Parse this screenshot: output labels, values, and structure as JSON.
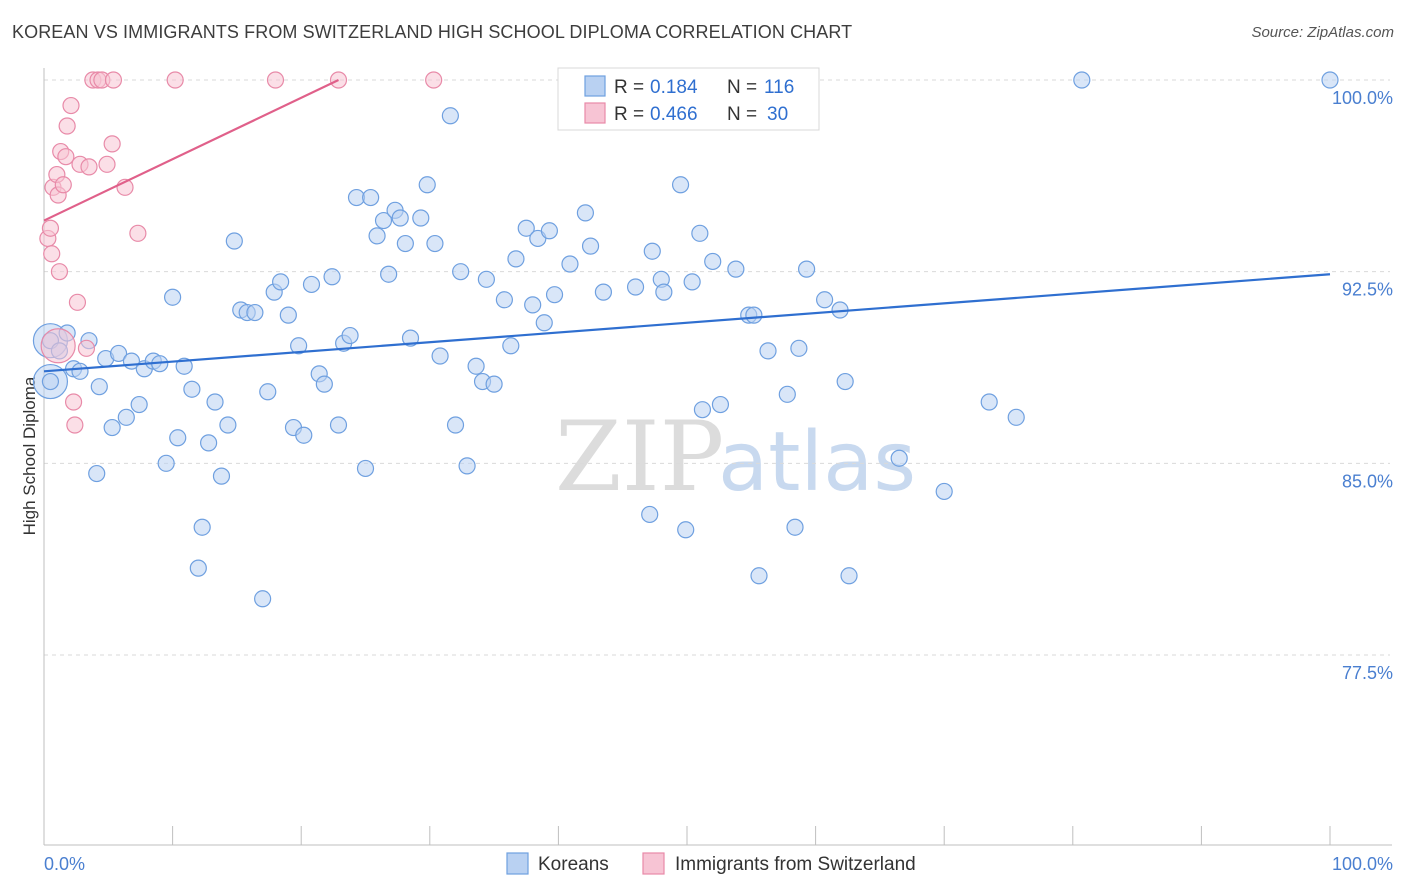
{
  "title": "KOREAN VS IMMIGRANTS FROM SWITZERLAND HIGH SCHOOL DIPLOMA CORRELATION CHART",
  "source": "Source: ZipAtlas.com",
  "watermark": {
    "zip": "ZIP",
    "atlas": "atlas"
  },
  "legend": {
    "r_label": "R =",
    "n_label": "N =",
    "rows": [
      {
        "r": "0.184",
        "n": "116"
      },
      {
        "r": "0.466",
        "n": "30"
      }
    ]
  },
  "chart_data": {
    "type": "scatter",
    "title": "KOREAN VS IMMIGRANTS FROM SWITZERLAND HIGH SCHOOL DIPLOMA CORRELATION CHART",
    "xlabel": "",
    "ylabel": "High School Diploma",
    "xlim": [
      0,
      100
    ],
    "ylim": [
      70.0,
      101.0
    ],
    "x_tick_labels": [
      "0.0%",
      "100.0%"
    ],
    "y_ticks": [
      77.5,
      85.0,
      92.5,
      100.0
    ],
    "y_tick_labels": [
      "77.5%",
      "85.0%",
      "92.5%",
      "100.0%"
    ],
    "grid": "horizontal dashed",
    "legend_position": "top-center",
    "colors": {
      "blue": "#6fa0e0",
      "blue_fill": "#b9d1f2",
      "pink": "#e88aa8",
      "pink_fill": "#f7c4d4",
      "blue_line": "#2f6fd0",
      "pink_line": "#e0608a"
    },
    "series": [
      {
        "name": "Koreans",
        "color": "#6fa0e0",
        "trend": {
          "x": [
            0,
            100
          ],
          "y": [
            88.6,
            92.4
          ]
        },
        "points": [
          [
            0.5,
            89.8
          ],
          [
            0.5,
            88.2
          ],
          [
            1.2,
            89.4
          ],
          [
            1.8,
            90.1
          ],
          [
            2.3,
            88.7
          ],
          [
            2.8,
            88.6
          ],
          [
            3.5,
            89.8
          ],
          [
            4.1,
            84.6
          ],
          [
            4.3,
            88.0
          ],
          [
            4.8,
            89.1
          ],
          [
            5.3,
            86.4
          ],
          [
            5.8,
            89.3
          ],
          [
            6.4,
            86.8
          ],
          [
            6.8,
            89.0
          ],
          [
            7.4,
            87.3
          ],
          [
            7.8,
            88.7
          ],
          [
            8.5,
            89.0
          ],
          [
            9.0,
            88.9
          ],
          [
            9.5,
            85.0
          ],
          [
            10.0,
            91.5
          ],
          [
            10.4,
            86.0
          ],
          [
            10.9,
            88.8
          ],
          [
            11.5,
            87.9
          ],
          [
            12.0,
            80.9
          ],
          [
            12.3,
            82.5
          ],
          [
            12.8,
            85.8
          ],
          [
            13.3,
            87.4
          ],
          [
            13.8,
            84.5
          ],
          [
            14.3,
            86.5
          ],
          [
            14.8,
            93.7
          ],
          [
            15.3,
            91.0
          ],
          [
            15.8,
            90.9
          ],
          [
            16.4,
            90.9
          ],
          [
            17.0,
            79.7
          ],
          [
            17.4,
            87.8
          ],
          [
            17.9,
            91.7
          ],
          [
            18.4,
            92.1
          ],
          [
            19.0,
            90.8
          ],
          [
            19.4,
            86.4
          ],
          [
            19.8,
            89.6
          ],
          [
            20.2,
            86.1
          ],
          [
            20.8,
            92.0
          ],
          [
            21.4,
            88.5
          ],
          [
            21.8,
            88.1
          ],
          [
            22.4,
            92.3
          ],
          [
            22.9,
            86.5
          ],
          [
            23.3,
            89.7
          ],
          [
            23.8,
            90.0
          ],
          [
            24.3,
            95.4
          ],
          [
            25.0,
            84.8
          ],
          [
            25.4,
            95.4
          ],
          [
            25.9,
            93.9
          ],
          [
            26.4,
            94.5
          ],
          [
            26.8,
            92.4
          ],
          [
            27.3,
            94.9
          ],
          [
            27.7,
            94.6
          ],
          [
            28.1,
            93.6
          ],
          [
            28.5,
            89.9
          ],
          [
            29.3,
            94.6
          ],
          [
            29.8,
            95.9
          ],
          [
            30.4,
            93.6
          ],
          [
            30.8,
            89.2
          ],
          [
            31.6,
            98.6
          ],
          [
            32.0,
            86.5
          ],
          [
            32.4,
            92.5
          ],
          [
            32.9,
            84.9
          ],
          [
            33.6,
            88.8
          ],
          [
            34.1,
            88.2
          ],
          [
            34.4,
            92.2
          ],
          [
            35.0,
            88.1
          ],
          [
            35.8,
            91.4
          ],
          [
            36.3,
            89.6
          ],
          [
            36.7,
            93.0
          ],
          [
            37.5,
            94.2
          ],
          [
            38.0,
            91.2
          ],
          [
            38.4,
            93.8
          ],
          [
            38.9,
            90.5
          ],
          [
            39.3,
            94.1
          ],
          [
            39.7,
            91.6
          ],
          [
            40.9,
            92.8
          ],
          [
            42.1,
            94.8
          ],
          [
            42.5,
            93.5
          ],
          [
            43.5,
            91.7
          ],
          [
            46.0,
            91.9
          ],
          [
            47.1,
            83.0
          ],
          [
            47.3,
            93.3
          ],
          [
            48.0,
            92.2
          ],
          [
            48.2,
            91.7
          ],
          [
            49.5,
            95.9
          ],
          [
            49.9,
            82.4
          ],
          [
            50.4,
            92.1
          ],
          [
            51.0,
            94.0
          ],
          [
            51.2,
            87.1
          ],
          [
            52.0,
            92.9
          ],
          [
            52.6,
            87.3
          ],
          [
            53.8,
            92.6
          ],
          [
            54.8,
            90.8
          ],
          [
            55.2,
            90.8
          ],
          [
            55.6,
            80.6
          ],
          [
            56.3,
            89.4
          ],
          [
            57.8,
            87.7
          ],
          [
            58.4,
            82.5
          ],
          [
            58.7,
            89.5
          ],
          [
            59.3,
            92.6
          ],
          [
            60.7,
            91.4
          ],
          [
            61.9,
            91.0
          ],
          [
            62.3,
            88.2
          ],
          [
            62.6,
            80.6
          ],
          [
            66.5,
            85.2
          ],
          [
            70.0,
            83.9
          ],
          [
            73.5,
            87.4
          ],
          [
            75.6,
            86.8
          ],
          [
            80.7,
            100.0
          ],
          [
            100.0,
            100.0
          ]
        ],
        "large_points": [
          [
            0.5,
            89.8
          ],
          [
            0.5,
            88.2
          ]
        ]
      },
      {
        "name": "Immigrants from Switzerland",
        "color": "#e88aa8",
        "trend": {
          "x": [
            0,
            22.9
          ],
          "y": [
            94.5,
            100.0
          ]
        },
        "points": [
          [
            0.3,
            93.8
          ],
          [
            0.5,
            94.2
          ],
          [
            0.6,
            93.2
          ],
          [
            0.7,
            95.8
          ],
          [
            1.0,
            96.3
          ],
          [
            1.1,
            95.5
          ],
          [
            1.2,
            92.5
          ],
          [
            1.3,
            97.2
          ],
          [
            1.5,
            95.9
          ],
          [
            1.7,
            97.0
          ],
          [
            1.8,
            98.2
          ],
          [
            2.1,
            99.0
          ],
          [
            2.3,
            87.4
          ],
          [
            2.4,
            86.5
          ],
          [
            2.6,
            91.3
          ],
          [
            2.8,
            96.7
          ],
          [
            3.3,
            89.5
          ],
          [
            3.5,
            96.6
          ],
          [
            3.8,
            100.0
          ],
          [
            4.2,
            100.0
          ],
          [
            4.5,
            100.0
          ],
          [
            4.9,
            96.7
          ],
          [
            5.3,
            97.5
          ],
          [
            5.4,
            100.0
          ],
          [
            6.3,
            95.8
          ],
          [
            7.3,
            94.0
          ],
          [
            10.2,
            100.0
          ],
          [
            18.0,
            100.0
          ],
          [
            22.9,
            100.0
          ],
          [
            30.3,
            100.0
          ]
        ],
        "large_points": [
          [
            1.1,
            89.6
          ]
        ]
      }
    ]
  },
  "bottom_legend": [
    {
      "label": "Koreans"
    },
    {
      "label": "Immigrants from Switzerland"
    }
  ]
}
